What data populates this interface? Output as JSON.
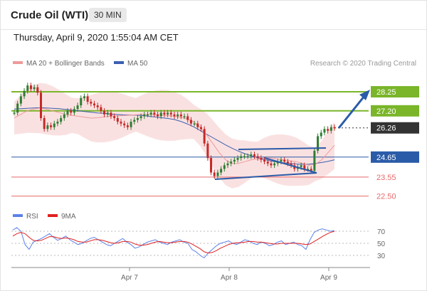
{
  "header": {
    "title": "Crude Oil (WTI)",
    "timeframe": "30 MIN"
  },
  "timestamp": "Thursday, April 9, 2020 1:55:04 AM CET",
  "legend": {
    "ma20": "MA 20 + Bollinger Bands",
    "ma50": "MA 50",
    "credit": "Research © 2020 Trading Central"
  },
  "rsi_legend": {
    "rsi": "RSI",
    "ma9": "9MA"
  },
  "colors": {
    "resistance": "#7ab52a",
    "support_strong": "#2a5ba8",
    "support_weak": "#e8696a",
    "current": "#333333",
    "bollinger": "#f6c9c9",
    "ma50": "#3b5fb0",
    "ma20": "#ef9a9a",
    "rsi": "#5b82e8",
    "rsi_ma": "#e02020",
    "arrow": "#2a5ba8"
  },
  "chart_data": [
    {
      "type": "line",
      "title": "",
      "x_axis": {
        "ticks": [
          "Apr 7",
          "Apr 8",
          "Apr 9"
        ]
      },
      "price_levels": [
        {
          "label": "28.25",
          "value": 28.25,
          "kind": "resistance"
        },
        {
          "label": "27.20",
          "value": 27.2,
          "kind": "resistance"
        },
        {
          "label": "26.26",
          "value": 26.26,
          "kind": "current"
        },
        {
          "label": "24.65",
          "value": 24.65,
          "kind": "support_strong"
        },
        {
          "label": "23.55",
          "value": 23.55,
          "kind": "support_weak"
        },
        {
          "label": "22.50",
          "value": 22.5,
          "kind": "support_weak"
        }
      ],
      "series": [
        {
          "name": "Price",
          "values": [
            27.1,
            27.6,
            28.0,
            28.3,
            28.6,
            28.4,
            28.5,
            28.2,
            26.8,
            26.2,
            26.4,
            26.3,
            26.5,
            26.6,
            26.8,
            27.0,
            27.2,
            27.1,
            27.3,
            27.5,
            27.9,
            28.0,
            27.7,
            27.6,
            27.5,
            27.4,
            27.2,
            27.0,
            27.1,
            26.9,
            26.8,
            26.6,
            26.5,
            26.4,
            26.3,
            26.6,
            26.7,
            26.8,
            26.9,
            27.0,
            27.0,
            27.1,
            27.0,
            26.9,
            27.1,
            27.0,
            27.1,
            27.0,
            26.9,
            27.0,
            26.9,
            26.9,
            26.7,
            26.5,
            26.5,
            26.3,
            26.2,
            25.4,
            24.6,
            23.8,
            23.6,
            23.8,
            24.0,
            24.2,
            24.3,
            24.4,
            24.5,
            24.6,
            24.7,
            24.7,
            24.7,
            24.8,
            24.7,
            24.6,
            24.5,
            24.4,
            24.3,
            24.2,
            24.3,
            24.4,
            24.5,
            24.4,
            24.3,
            24.2,
            24.0,
            24.1,
            24.2,
            24.0,
            24.0,
            23.9,
            25.0,
            25.8,
            26.0,
            26.2,
            26.1,
            26.3,
            26.26
          ]
        },
        {
          "name": "MA 50",
          "values": [
            27.3,
            27.32,
            27.34,
            27.36,
            27.37,
            27.36,
            27.34,
            27.32,
            27.28,
            27.24,
            27.2,
            27.16,
            27.12,
            27.08,
            27.06,
            27.02,
            27.0,
            26.98,
            26.97,
            26.96,
            26.94,
            26.9,
            26.86,
            26.82,
            26.78,
            26.72,
            26.62,
            26.48,
            26.32,
            26.12,
            25.92,
            25.72,
            25.52,
            25.32,
            25.14,
            24.98,
            24.84,
            24.72,
            24.62,
            24.52,
            24.44,
            24.38,
            24.34,
            24.3,
            24.27,
            24.25,
            24.26,
            24.3,
            24.35,
            24.42,
            24.5
          ]
        },
        {
          "name": "MA 20",
          "values": [
            26.8,
            27.0,
            27.2,
            27.3,
            27.35,
            27.3,
            27.2,
            27.1,
            27.0,
            26.95,
            26.9,
            26.85,
            26.8,
            26.82,
            26.86,
            26.9,
            26.92,
            26.94,
            26.96,
            26.98,
            27.0,
            27.0,
            26.98,
            26.96,
            26.94,
            26.9,
            26.85,
            26.75,
            26.6,
            26.3,
            25.9,
            25.4,
            24.9,
            24.5,
            24.3,
            24.3,
            24.4,
            24.5,
            24.55,
            24.6,
            24.6,
            24.55,
            24.5,
            24.45,
            24.4,
            24.3,
            24.2,
            24.25,
            24.5,
            24.9,
            25.3
          ]
        }
      ]
    },
    {
      "type": "line",
      "title": "",
      "y_axis": {
        "ticks": [
          70,
          50,
          30
        ]
      },
      "series": [
        {
          "name": "RSI",
          "values": [
            72,
            76,
            70,
            48,
            40,
            52,
            55,
            58,
            62,
            66,
            60,
            55,
            58,
            62,
            56,
            52,
            48,
            50,
            54,
            58,
            60,
            56,
            52,
            48,
            46,
            50,
            54,
            58,
            52,
            48,
            42,
            44,
            48,
            52,
            54,
            56,
            52,
            50,
            48,
            52,
            54,
            56,
            52,
            50,
            40,
            36,
            30,
            26,
            34,
            40,
            46,
            50,
            52,
            54,
            50,
            48,
            52,
            56,
            54,
            50,
            48,
            52,
            50,
            46,
            48,
            52,
            54,
            48,
            50,
            52,
            48,
            46,
            40,
            56,
            68,
            72,
            74,
            72,
            70,
            71
          ]
        },
        {
          "name": "9MA",
          "values": [
            62,
            66,
            68,
            66,
            60,
            55,
            54,
            55,
            58,
            61,
            61,
            59,
            58,
            59,
            58,
            56,
            53,
            52,
            52,
            54,
            56,
            56,
            55,
            53,
            51,
            50,
            51,
            53,
            53,
            52,
            49,
            47,
            47,
            48,
            50,
            52,
            53,
            52,
            51,
            51,
            52,
            53,
            53,
            52,
            49,
            45,
            41,
            36,
            34,
            35,
            38,
            42,
            45,
            48,
            50,
            51,
            51,
            52,
            53,
            53,
            52,
            52,
            51,
            50,
            49,
            49,
            50,
            50,
            50,
            50,
            50,
            49,
            48,
            49,
            53,
            57,
            61,
            65,
            68,
            70
          ]
        }
      ]
    }
  ]
}
